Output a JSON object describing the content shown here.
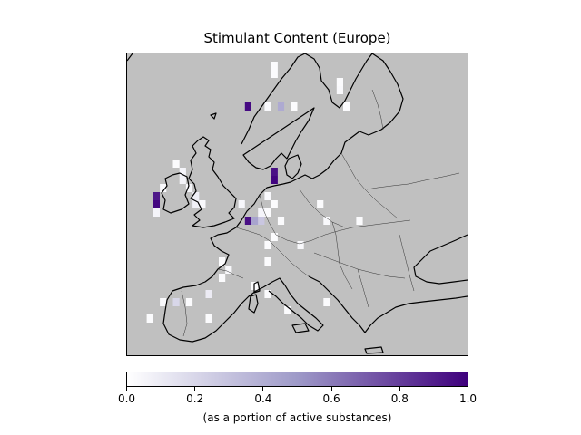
{
  "title": "Stimulant Content (Europe)",
  "colorbar": {
    "label": "(as a portion of active substances)",
    "min": 0.0,
    "max": 1.0,
    "ticks": [
      "0.0",
      "0.2",
      "0.4",
      "0.6",
      "0.8",
      "1.0"
    ],
    "colormap": "Purples",
    "color_low": "#ffffff",
    "color_high": "#3f007d"
  },
  "map": {
    "projection": "lat-lon",
    "lon_range": [
      -12,
      40
    ],
    "lat_range": [
      34,
      71
    ],
    "ocean_color": "#c0c0c0",
    "land_color": "#c0c0c0",
    "coastline_color": "#000000",
    "grid_cells": [
      {
        "lon": -8,
        "lat": 53,
        "value": 0.92
      },
      {
        "lon": -8,
        "lat": 52,
        "value": 0.98
      },
      {
        "lon": -8,
        "lat": 51,
        "value": 0.05
      },
      {
        "lon": -7,
        "lat": 54,
        "value": 0.03
      },
      {
        "lon": -5,
        "lat": 57,
        "value": 0.02
      },
      {
        "lon": -4,
        "lat": 56,
        "value": 0.05
      },
      {
        "lon": -4,
        "lat": 55,
        "value": 0.06
      },
      {
        "lon": -3,
        "lat": 54,
        "value": 0.04
      },
      {
        "lon": -2,
        "lat": 53,
        "value": 0.08
      },
      {
        "lon": -2,
        "lat": 52,
        "value": 0.07
      },
      {
        "lon": -1,
        "lat": 52,
        "value": 0.03
      },
      {
        "lon": 6,
        "lat": 64,
        "value": 0.97
      },
      {
        "lon": 5,
        "lat": 52,
        "value": 0.04
      },
      {
        "lon": 6,
        "lat": 50,
        "value": 0.95
      },
      {
        "lon": 7,
        "lat": 50,
        "value": 0.45
      },
      {
        "lon": 8,
        "lat": 50,
        "value": 0.28
      },
      {
        "lon": 8,
        "lat": 51,
        "value": 0.05
      },
      {
        "lon": 9,
        "lat": 51,
        "value": 0.02
      },
      {
        "lon": 9,
        "lat": 53,
        "value": 0.03
      },
      {
        "lon": 10,
        "lat": 55,
        "value": 0.99
      },
      {
        "lon": 10,
        "lat": 56,
        "value": 0.95
      },
      {
        "lon": 10,
        "lat": 52,
        "value": 0.02
      },
      {
        "lon": 11,
        "lat": 50,
        "value": 0.02
      },
      {
        "lon": 10,
        "lat": 48,
        "value": 0.02
      },
      {
        "lon": 9,
        "lat": 64,
        "value": 0.03
      },
      {
        "lon": 11,
        "lat": 64,
        "value": 0.42
      },
      {
        "lon": 13,
        "lat": 64,
        "value": 0.02
      },
      {
        "lon": 10,
        "lat": 69,
        "value": 0.02
      },
      {
        "lon": 10,
        "lat": 68,
        "value": 0.02
      },
      {
        "lon": 20,
        "lat": 67,
        "value": 0.02
      },
      {
        "lon": 20,
        "lat": 66,
        "value": 0.03
      },
      {
        "lon": 21,
        "lat": 64,
        "value": 0.02
      },
      {
        "lon": 17,
        "lat": 52,
        "value": 0.02
      },
      {
        "lon": 18,
        "lat": 50,
        "value": 0.03
      },
      {
        "lon": 23,
        "lat": 50,
        "value": 0.02
      },
      {
        "lon": 2,
        "lat": 45,
        "value": 0.02
      },
      {
        "lon": 3,
        "lat": 44,
        "value": 0.03
      },
      {
        "lon": 2,
        "lat": 43,
        "value": 0.02
      },
      {
        "lon": 9,
        "lat": 47,
        "value": 0.02
      },
      {
        "lon": 9,
        "lat": 45,
        "value": 0.02
      },
      {
        "lon": 7,
        "lat": 42,
        "value": 0.02
      },
      {
        "lon": 9,
        "lat": 41,
        "value": 0.02
      },
      {
        "lon": 0,
        "lat": 41,
        "value": 0.1
      },
      {
        "lon": 14,
        "lat": 47,
        "value": 0.03
      },
      {
        "lon": -7,
        "lat": 40,
        "value": 0.03
      },
      {
        "lon": -5,
        "lat": 40,
        "value": 0.2
      },
      {
        "lon": -3,
        "lat": 40,
        "value": 0.02
      },
      {
        "lon": -9,
        "lat": 38,
        "value": 0.02
      },
      {
        "lon": 0,
        "lat": 38,
        "value": 0.02
      },
      {
        "lon": 12,
        "lat": 39,
        "value": 0.02
      },
      {
        "lon": 18,
        "lat": 40,
        "value": 0.02
      }
    ]
  }
}
